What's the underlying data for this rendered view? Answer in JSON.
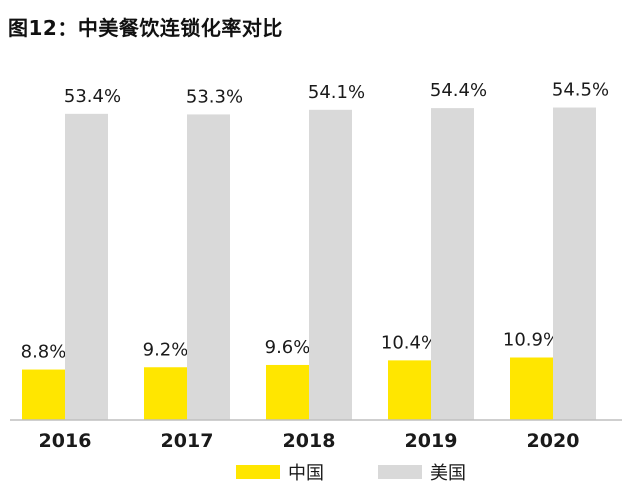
{
  "title": "图12：中美餐饮连锁化率对比",
  "chart_data": {
    "type": "bar",
    "title": "图12：中美餐饮连锁化率对比",
    "categories": [
      "2016",
      "2017",
      "2018",
      "2019",
      "2020"
    ],
    "series": [
      {
        "name": "中国",
        "values": [
          8.8,
          9.2,
          9.6,
          10.4,
          10.9
        ],
        "labels": [
          "8.8%",
          "9.2%",
          "9.6%",
          "10.4%",
          "10.9%"
        ],
        "color": "#FFE600"
      },
      {
        "name": "美国",
        "values": [
          53.4,
          53.3,
          54.1,
          54.4,
          54.5
        ],
        "labels": [
          "53.4%",
          "53.3%",
          "54.1%",
          "54.4%",
          "54.5%"
        ],
        "color": "#D9D9D9"
      }
    ],
    "ylim": [
      0,
      60
    ],
    "grid": false,
    "legend_position": "bottom",
    "axis_color": "#BFBFBF"
  }
}
